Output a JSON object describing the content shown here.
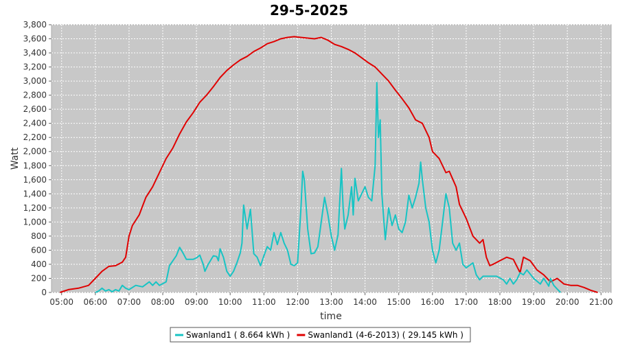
{
  "chart_data": {
    "type": "line",
    "title": "29-5-2025",
    "xlabel": "time",
    "ylabel": "Watt",
    "xlim": [
      4.7,
      21.3
    ],
    "ylim": [
      0,
      3800
    ],
    "grid": true,
    "legend_position": "bottom",
    "x_ticks": [
      "05:00",
      "06:00",
      "07:00",
      "08:00",
      "09:00",
      "10:00",
      "11:00",
      "12:00",
      "13:00",
      "14:00",
      "15:00",
      "16:00",
      "17:00",
      "18:00",
      "19:00",
      "20:00",
      "21:00"
    ],
    "y_ticks": [
      "0",
      "200",
      "400",
      "600",
      "800",
      "1,000",
      "1,200",
      "1,400",
      "1,600",
      "1,800",
      "2,000",
      "2,200",
      "2,400",
      "2,600",
      "2,800",
      "3,000",
      "3,200",
      "3,400",
      "3,600",
      "3,800"
    ],
    "series": [
      {
        "name": "Swanland1 ( 8.664 kWh )",
        "color": "#17c4c4",
        "points": [
          [
            6.0,
            0
          ],
          [
            6.1,
            20
          ],
          [
            6.2,
            60
          ],
          [
            6.3,
            20
          ],
          [
            6.4,
            40
          ],
          [
            6.5,
            10
          ],
          [
            6.6,
            40
          ],
          [
            6.7,
            20
          ],
          [
            6.8,
            100
          ],
          [
            6.9,
            60
          ],
          [
            7.0,
            40
          ],
          [
            7.2,
            100
          ],
          [
            7.4,
            80
          ],
          [
            7.6,
            150
          ],
          [
            7.7,
            100
          ],
          [
            7.8,
            150
          ],
          [
            7.9,
            100
          ],
          [
            8.1,
            150
          ],
          [
            8.2,
            380
          ],
          [
            8.4,
            520
          ],
          [
            8.5,
            640
          ],
          [
            8.6,
            560
          ],
          [
            8.7,
            470
          ],
          [
            8.9,
            470
          ],
          [
            9.0,
            490
          ],
          [
            9.1,
            530
          ],
          [
            9.2,
            400
          ],
          [
            9.25,
            300
          ],
          [
            9.35,
            400
          ],
          [
            9.5,
            520
          ],
          [
            9.6,
            510
          ],
          [
            9.65,
            450
          ],
          [
            9.7,
            620
          ],
          [
            9.8,
            500
          ],
          [
            9.9,
            300
          ],
          [
            10.0,
            230
          ],
          [
            10.1,
            300
          ],
          [
            10.2,
            420
          ],
          [
            10.3,
            560
          ],
          [
            10.35,
            700
          ],
          [
            10.4,
            1240
          ],
          [
            10.5,
            900
          ],
          [
            10.6,
            1180
          ],
          [
            10.7,
            550
          ],
          [
            10.8,
            500
          ],
          [
            10.9,
            380
          ],
          [
            11.0,
            520
          ],
          [
            11.1,
            650
          ],
          [
            11.2,
            600
          ],
          [
            11.3,
            850
          ],
          [
            11.4,
            680
          ],
          [
            11.5,
            850
          ],
          [
            11.6,
            700
          ],
          [
            11.7,
            600
          ],
          [
            11.8,
            400
          ],
          [
            11.9,
            380
          ],
          [
            12.0,
            420
          ],
          [
            12.1,
            1200
          ],
          [
            12.15,
            1720
          ],
          [
            12.2,
            1600
          ],
          [
            12.3,
            900
          ],
          [
            12.4,
            550
          ],
          [
            12.5,
            560
          ],
          [
            12.6,
            650
          ],
          [
            12.7,
            1000
          ],
          [
            12.8,
            1350
          ],
          [
            12.9,
            1100
          ],
          [
            13.0,
            800
          ],
          [
            13.1,
            600
          ],
          [
            13.2,
            820
          ],
          [
            13.3,
            1760
          ],
          [
            13.35,
            1200
          ],
          [
            13.4,
            900
          ],
          [
            13.5,
            1100
          ],
          [
            13.6,
            1500
          ],
          [
            13.65,
            1100
          ],
          [
            13.7,
            1620
          ],
          [
            13.8,
            1300
          ],
          [
            13.9,
            1400
          ],
          [
            14.0,
            1500
          ],
          [
            14.1,
            1350
          ],
          [
            14.2,
            1300
          ],
          [
            14.3,
            1800
          ],
          [
            14.35,
            2980
          ],
          [
            14.4,
            2200
          ],
          [
            14.45,
            2450
          ],
          [
            14.5,
            1400
          ],
          [
            14.6,
            750
          ],
          [
            14.7,
            1200
          ],
          [
            14.8,
            950
          ],
          [
            14.9,
            1100
          ],
          [
            15.0,
            900
          ],
          [
            15.1,
            850
          ],
          [
            15.2,
            1000
          ],
          [
            15.3,
            1380
          ],
          [
            15.4,
            1200
          ],
          [
            15.5,
            1350
          ],
          [
            15.6,
            1550
          ],
          [
            15.65,
            1850
          ],
          [
            15.7,
            1600
          ],
          [
            15.8,
            1200
          ],
          [
            15.9,
            1000
          ],
          [
            16.0,
            600
          ],
          [
            16.1,
            420
          ],
          [
            16.2,
            600
          ],
          [
            16.3,
            1000
          ],
          [
            16.4,
            1400
          ],
          [
            16.5,
            1200
          ],
          [
            16.6,
            700
          ],
          [
            16.7,
            600
          ],
          [
            16.8,
            700
          ],
          [
            16.9,
            400
          ],
          [
            17.0,
            350
          ],
          [
            17.2,
            420
          ],
          [
            17.3,
            250
          ],
          [
            17.4,
            180
          ],
          [
            17.5,
            230
          ],
          [
            17.7,
            230
          ],
          [
            17.9,
            230
          ],
          [
            18.1,
            180
          ],
          [
            18.2,
            120
          ],
          [
            18.3,
            200
          ],
          [
            18.4,
            120
          ],
          [
            18.5,
            180
          ],
          [
            18.6,
            280
          ],
          [
            18.7,
            250
          ],
          [
            18.8,
            320
          ],
          [
            18.9,
            260
          ],
          [
            19.0,
            200
          ],
          [
            19.2,
            120
          ],
          [
            19.3,
            200
          ],
          [
            19.4,
            130
          ],
          [
            19.45,
            90
          ],
          [
            19.5,
            200
          ],
          [
            19.6,
            100
          ],
          [
            19.7,
            50
          ],
          [
            19.8,
            0
          ]
        ]
      },
      {
        "name": "Swanland1 (4-6-2013) ( 29.145 kWh )",
        "color": "#e00000",
        "points": [
          [
            4.95,
            0
          ],
          [
            5.2,
            40
          ],
          [
            5.5,
            60
          ],
          [
            5.8,
            100
          ],
          [
            6.0,
            200
          ],
          [
            6.2,
            300
          ],
          [
            6.4,
            370
          ],
          [
            6.6,
            380
          ],
          [
            6.8,
            430
          ],
          [
            6.9,
            500
          ],
          [
            7.0,
            800
          ],
          [
            7.1,
            950
          ],
          [
            7.3,
            1100
          ],
          [
            7.5,
            1350
          ],
          [
            7.7,
            1500
          ],
          [
            7.9,
            1700
          ],
          [
            8.1,
            1900
          ],
          [
            8.3,
            2050
          ],
          [
            8.5,
            2250
          ],
          [
            8.7,
            2420
          ],
          [
            8.9,
            2550
          ],
          [
            9.1,
            2700
          ],
          [
            9.3,
            2800
          ],
          [
            9.5,
            2920
          ],
          [
            9.7,
            3050
          ],
          [
            9.9,
            3150
          ],
          [
            10.1,
            3230
          ],
          [
            10.3,
            3300
          ],
          [
            10.5,
            3350
          ],
          [
            10.7,
            3420
          ],
          [
            10.9,
            3470
          ],
          [
            11.1,
            3530
          ],
          [
            11.3,
            3560
          ],
          [
            11.5,
            3600
          ],
          [
            11.7,
            3620
          ],
          [
            11.9,
            3630
          ],
          [
            12.1,
            3620
          ],
          [
            12.3,
            3610
          ],
          [
            12.5,
            3600
          ],
          [
            12.7,
            3620
          ],
          [
            12.9,
            3580
          ],
          [
            13.1,
            3520
          ],
          [
            13.3,
            3490
          ],
          [
            13.5,
            3450
          ],
          [
            13.7,
            3400
          ],
          [
            13.9,
            3330
          ],
          [
            14.1,
            3260
          ],
          [
            14.3,
            3200
          ],
          [
            14.5,
            3100
          ],
          [
            14.7,
            3000
          ],
          [
            14.9,
            2870
          ],
          [
            15.1,
            2750
          ],
          [
            15.3,
            2620
          ],
          [
            15.5,
            2450
          ],
          [
            15.7,
            2400
          ],
          [
            15.9,
            2200
          ],
          [
            16.0,
            2000
          ],
          [
            16.2,
            1900
          ],
          [
            16.4,
            1700
          ],
          [
            16.5,
            1720
          ],
          [
            16.7,
            1500
          ],
          [
            16.8,
            1250
          ],
          [
            17.0,
            1050
          ],
          [
            17.2,
            800
          ],
          [
            17.4,
            700
          ],
          [
            17.5,
            750
          ],
          [
            17.6,
            500
          ],
          [
            17.7,
            380
          ],
          [
            17.8,
            400
          ],
          [
            18.0,
            450
          ],
          [
            18.2,
            500
          ],
          [
            18.4,
            470
          ],
          [
            18.6,
            280
          ],
          [
            18.7,
            500
          ],
          [
            18.9,
            450
          ],
          [
            19.1,
            320
          ],
          [
            19.3,
            250
          ],
          [
            19.5,
            150
          ],
          [
            19.7,
            200
          ],
          [
            19.9,
            120
          ],
          [
            20.1,
            100
          ],
          [
            20.3,
            100
          ],
          [
            20.5,
            70
          ],
          [
            20.7,
            30
          ],
          [
            20.9,
            0
          ]
        ]
      }
    ]
  }
}
